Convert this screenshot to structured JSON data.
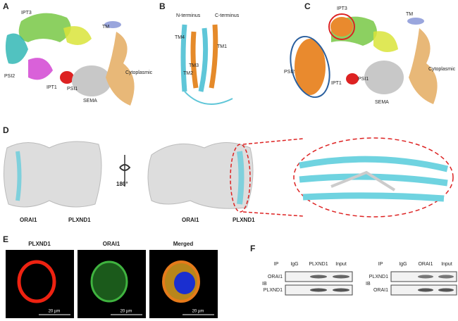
{
  "panels": {
    "a": {
      "letter": "A",
      "labels": [
        "IPT3",
        "TM",
        "PSI2",
        "IPT1",
        "PSI1",
        "SEMA",
        "Cytoplasmic"
      ]
    },
    "b": {
      "letter": "B",
      "labels": [
        "N-terminus",
        "C-terminus",
        "TM4",
        "TM1",
        "TM3",
        "TM2"
      ]
    },
    "c": {
      "letter": "C",
      "labels": [
        "IPT3",
        "TM",
        "PSI2",
        "Cytoplasmic",
        "PSI1",
        "IPT1",
        "SEMA"
      ]
    },
    "d": {
      "letter": "D",
      "labels": [
        "ORAI1",
        "PLXND1",
        "180°",
        "ORAI1",
        "PLXND1"
      ]
    },
    "e": {
      "letter": "E",
      "titles": [
        "PLXND1",
        "ORAI1",
        "Merged"
      ],
      "scale_bars": [
        "20 µm",
        "20 µm",
        "20 µm"
      ]
    },
    "f": {
      "letter": "F",
      "left": {
        "ip": "IP",
        "lanes": [
          "IgG",
          "PLXND1",
          "Input"
        ],
        "ib": "IB",
        "rows": [
          "ORAI1",
          "PLXND1"
        ]
      },
      "right": {
        "ip": "IP",
        "lanes": [
          "IgG",
          "ORAI1",
          "Input"
        ],
        "ib": "IB",
        "rows": [
          "PLXND1",
          "ORAI1"
        ]
      }
    }
  }
}
